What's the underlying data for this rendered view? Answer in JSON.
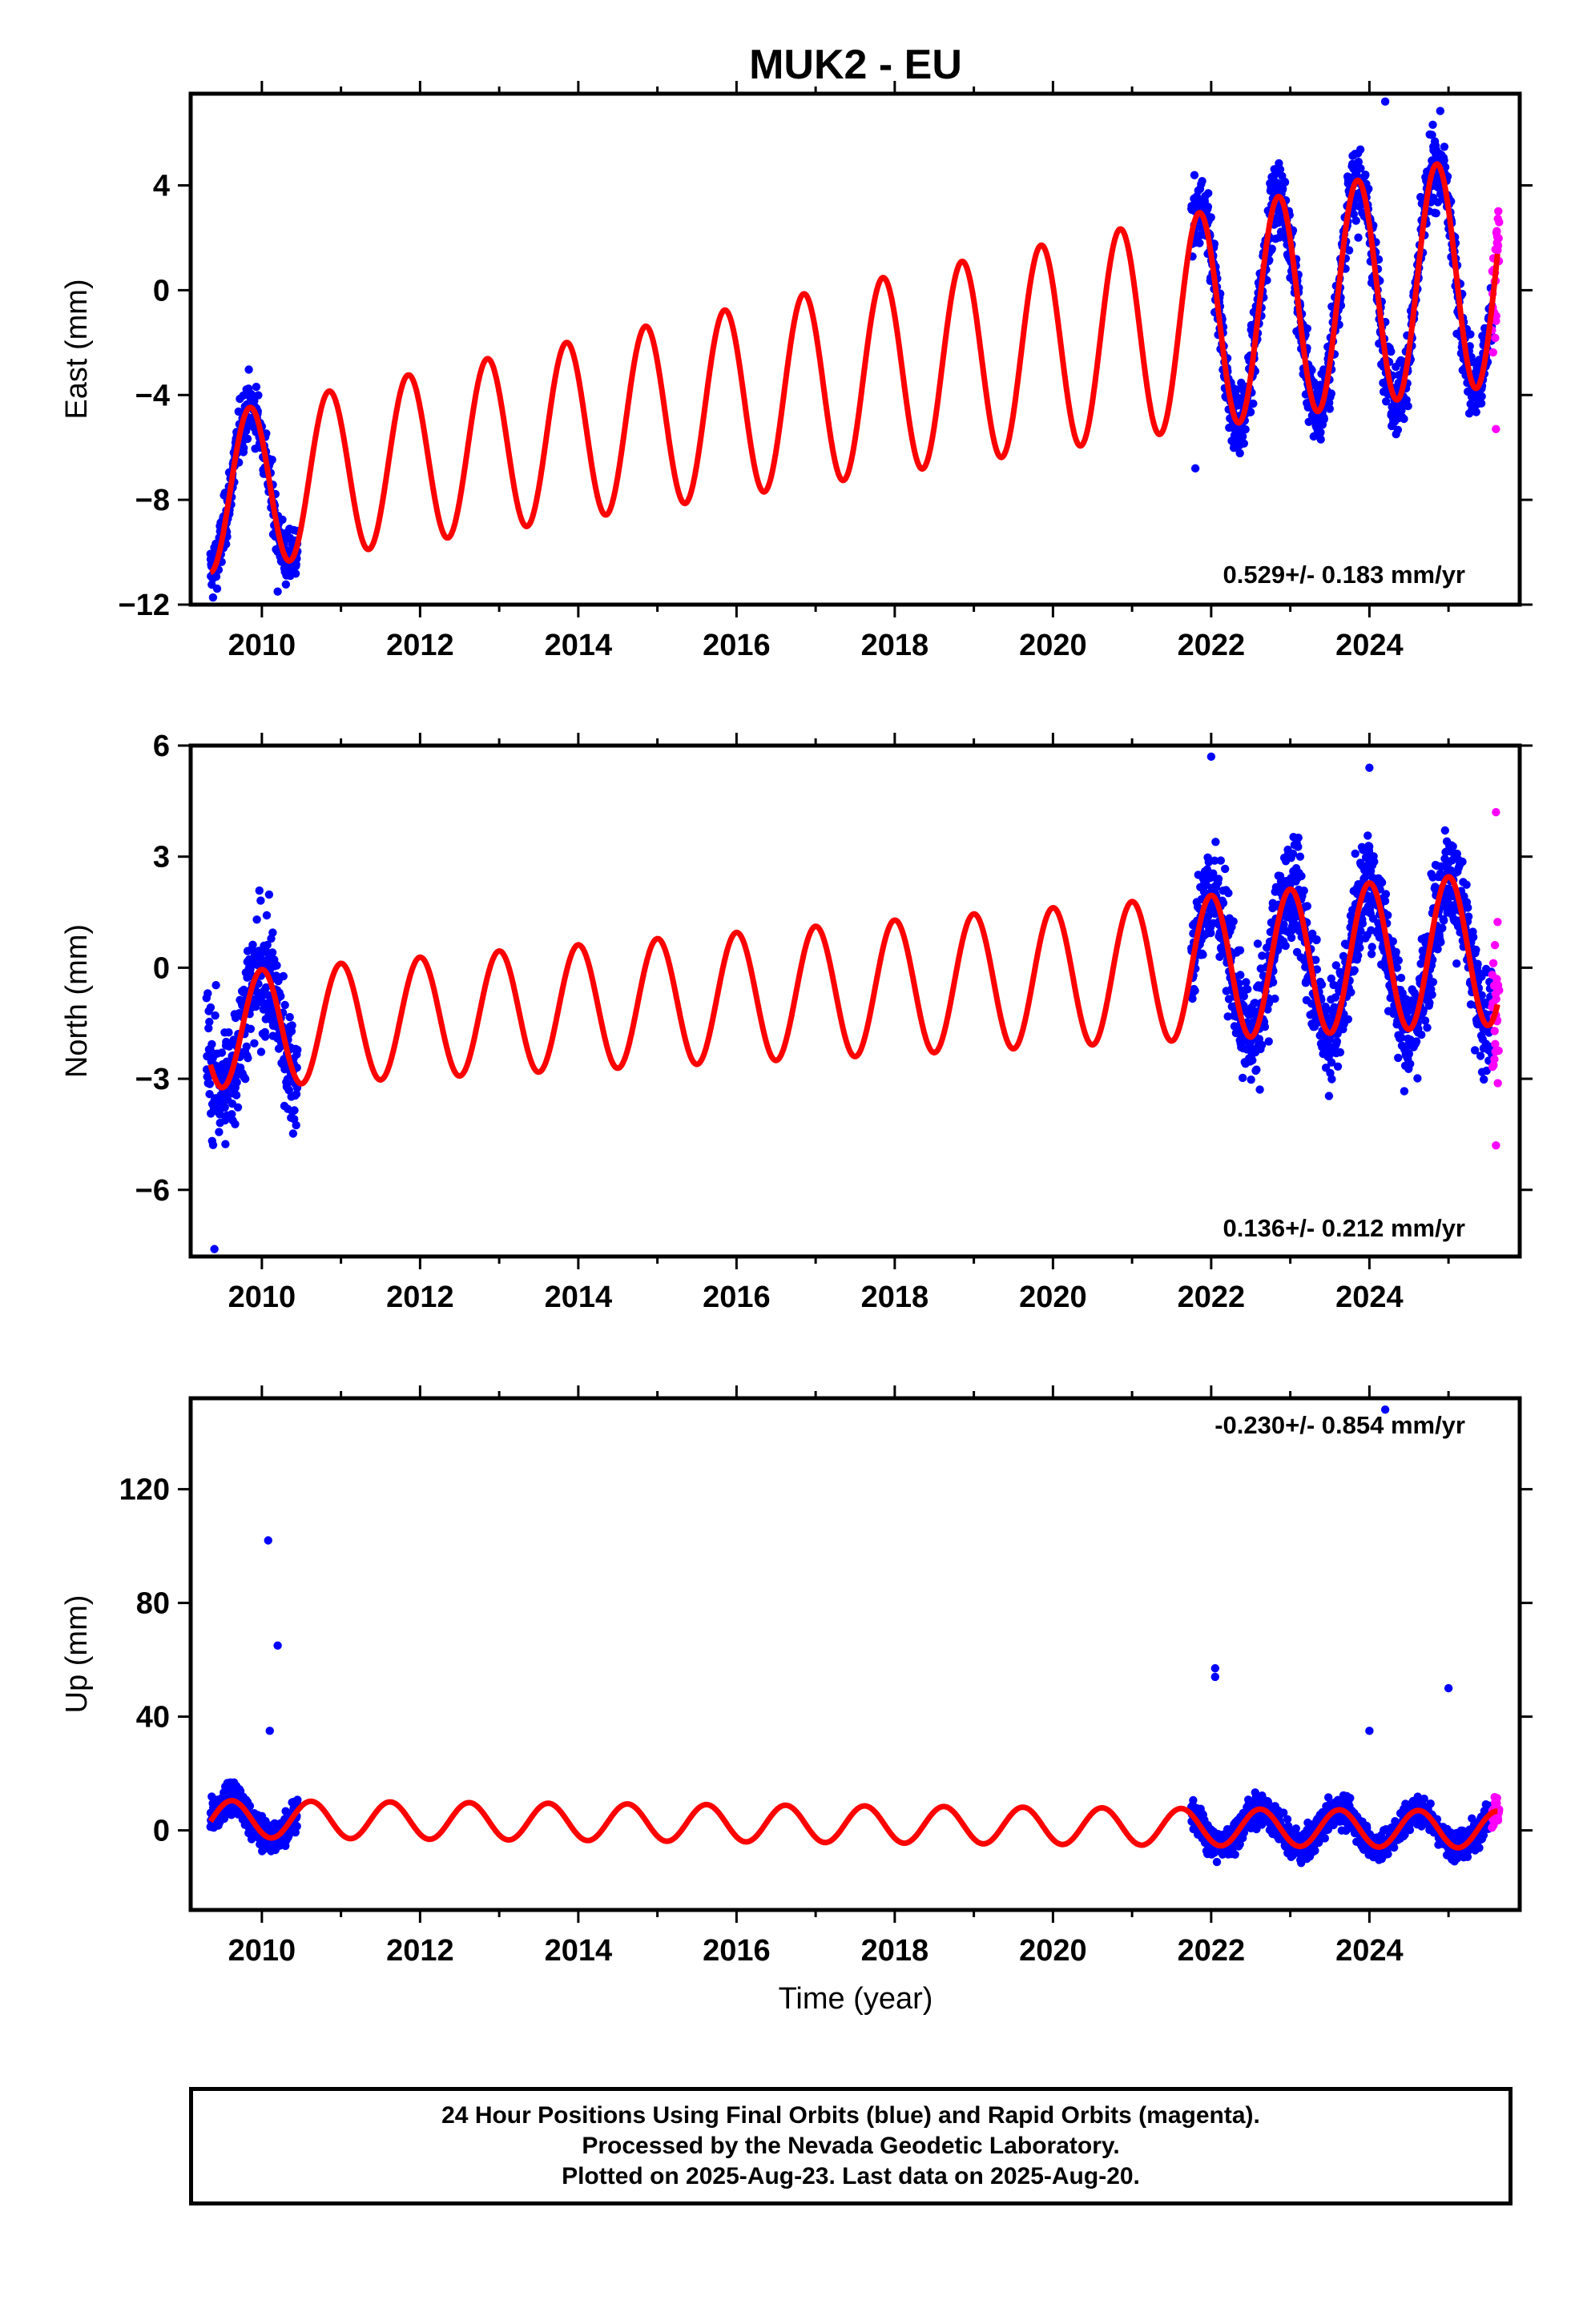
{
  "title": "MUK2 - EU",
  "xlabel": "Time (year)",
  "footer": {
    "line1": "24 Hour Positions Using Final Orbits (blue) and Rapid Orbits (magenta).",
    "line2": "Processed by the Nevada Geodetic Laboratory.",
    "line3": "Plotted on 2025-Aug-23. Last data on 2025-Aug-20."
  },
  "colors": {
    "final": "#0000ff",
    "rapid": "#ff00ff",
    "model": "#ff0000",
    "axis": "#000000"
  },
  "chart_data": [
    {
      "type": "scatter",
      "ylabel": "East (mm)",
      "rate_label": "0.529+/- 0.183 mm/yr",
      "xlim": [
        2009.1,
        2025.9
      ],
      "ylim": [
        -12,
        7.5
      ],
      "x_ticks": [
        2010,
        2012,
        2014,
        2016,
        2018,
        2020,
        2022,
        2024
      ],
      "y_ticks": [
        -12,
        -8,
        -4,
        0,
        4
      ],
      "y_tick_labels": [
        "−12",
        "−8",
        "−4",
        "0",
        "4"
      ],
      "model": {
        "offset": -7.75,
        "rate": 0.529,
        "t0": 2009.4,
        "amp": 3.0,
        "phase_year": 2009.85,
        "amp_growth": 0.03
      },
      "segments": [
        {
          "start": 2009.35,
          "end": 2010.45,
          "color": "final",
          "noise": 1.0
        },
        {
          "start": 2021.75,
          "end": 2025.55,
          "color": "final",
          "noise": 1.3
        },
        {
          "start": 2025.55,
          "end": 2025.64,
          "color": "rapid",
          "noise": 2.0
        }
      ],
      "outliers": [
        {
          "x": 2024.2,
          "y": 7.2
        },
        {
          "x": 2010.2,
          "y": -11.5
        },
        {
          "x": 2025.6,
          "y": -5.3
        },
        {
          "x": 2021.8,
          "y": -6.8
        }
      ]
    },
    {
      "type": "scatter",
      "ylabel": "North (mm)",
      "rate_label": "0.136+/- 0.212 mm/yr",
      "xlim": [
        2009.1,
        2025.9
      ],
      "ylim": [
        -7.8,
        6
      ],
      "x_ticks": [
        2010,
        2012,
        2014,
        2016,
        2018,
        2020,
        2022,
        2024
      ],
      "y_ticks": [
        -6,
        -3,
        0,
        3,
        6
      ],
      "y_tick_labels": [
        "−6",
        "−3",
        "0",
        "3",
        "6"
      ],
      "model": {
        "offset": -1.7,
        "rate": 0.136,
        "t0": 2009.4,
        "amp": 1.55,
        "phase_year": 2010.0,
        "amp_growth": 0.02
      },
      "segments": [
        {
          "start": 2009.3,
          "end": 2010.45,
          "color": "final",
          "noise": 1.6
        },
        {
          "start": 2021.75,
          "end": 2025.55,
          "color": "final",
          "noise": 1.3
        },
        {
          "start": 2025.55,
          "end": 2025.64,
          "color": "rapid",
          "noise": 2.2
        }
      ],
      "outliers": [
        {
          "x": 2022.0,
          "y": 5.7
        },
        {
          "x": 2024.0,
          "y": 5.4
        },
        {
          "x": 2009.4,
          "y": -7.6
        },
        {
          "x": 2025.6,
          "y": 4.2
        },
        {
          "x": 2025.6,
          "y": -4.8
        }
      ]
    },
    {
      "type": "scatter",
      "ylabel": "Up (mm)",
      "rate_label": "-0.230+/- 0.854 mm/yr",
      "xlim": [
        2009.1,
        2025.9
      ],
      "ylim": [
        -28,
        152
      ],
      "x_ticks": [
        2010,
        2012,
        2014,
        2016,
        2018,
        2020,
        2022,
        2024
      ],
      "y_ticks": [
        0,
        40,
        80,
        120
      ],
      "y_tick_labels": [
        "0",
        "40",
        "80",
        "120"
      ],
      "model": {
        "offset": 4.0,
        "rate": -0.23,
        "t0": 2009.4,
        "amp": 6.5,
        "phase_year": 2009.62,
        "amp_growth": 0.0
      },
      "segments": [
        {
          "start": 2009.35,
          "end": 2010.45,
          "color": "final",
          "noise": 5.5
        },
        {
          "start": 2021.75,
          "end": 2025.55,
          "color": "final",
          "noise": 5.0
        },
        {
          "start": 2025.55,
          "end": 2025.64,
          "color": "rapid",
          "noise": 5.0
        }
      ],
      "outliers": [
        {
          "x": 2010.08,
          "y": 102
        },
        {
          "x": 2010.2,
          "y": 65
        },
        {
          "x": 2010.1,
          "y": 35
        },
        {
          "x": 2022.05,
          "y": 57
        },
        {
          "x": 2022.05,
          "y": 54
        },
        {
          "x": 2024.2,
          "y": 148
        },
        {
          "x": 2025.0,
          "y": 50
        },
        {
          "x": 2024.0,
          "y": 35
        }
      ]
    }
  ]
}
